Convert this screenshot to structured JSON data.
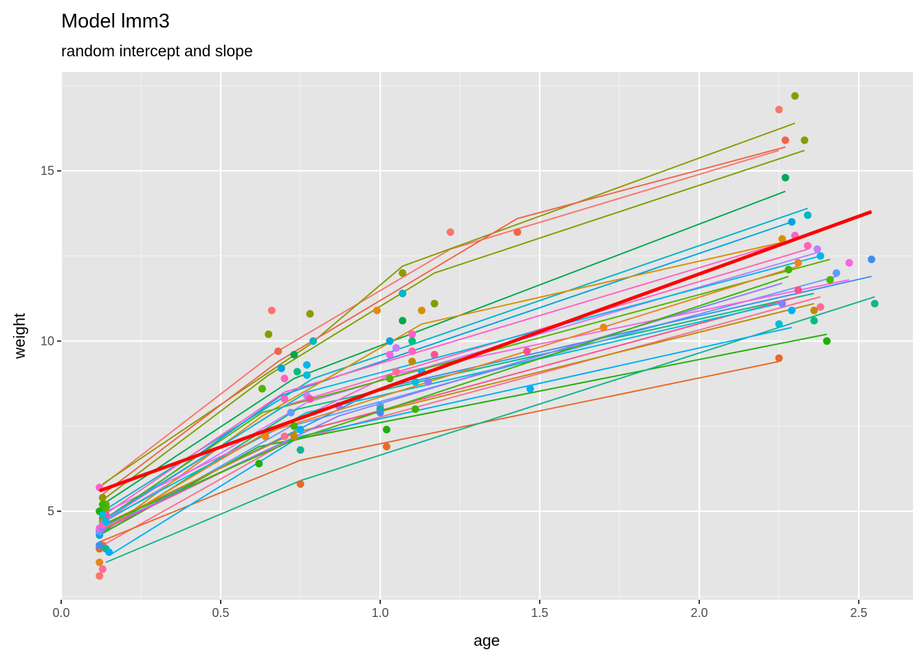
{
  "chart_data": {
    "type": "line",
    "title": "Model lmm3",
    "subtitle": "random intercept and slope",
    "xlabel": "age",
    "ylabel": "weight",
    "xlim": [
      -0.0,
      2.67
    ],
    "ylim": [
      2.4,
      17.9
    ],
    "xticks": [
      0.0,
      0.5,
      1.0,
      1.5,
      2.0,
      2.5
    ],
    "xtick_labels": [
      "0.0",
      "0.5",
      "1.0",
      "1.5",
      "2.0",
      "2.5"
    ],
    "yticks": [
      5,
      10,
      15
    ],
    "ytick_labels": [
      "5",
      "10",
      "15"
    ],
    "grid": true,
    "legend": "none",
    "population_fit": {
      "color": "#FF0000",
      "points": [
        [
          0.12,
          5.6
        ],
        [
          2.54,
          13.8
        ]
      ]
    },
    "subjects": [
      {
        "color": "#F8766D",
        "points": [
          [
            0.12,
            3.1
          ],
          [
            0.66,
            10.9
          ],
          [
            1.22,
            13.2
          ],
          [
            2.25,
            16.8
          ]
        ],
        "fit": [
          [
            0.12,
            5.7
          ],
          [
            0.66,
            9.6
          ],
          [
            1.22,
            12.7
          ],
          [
            2.25,
            15.6
          ]
        ]
      },
      {
        "color": "#8E9A00",
        "points": [
          [
            0.13,
            5.4
          ],
          [
            0.78,
            10.8
          ],
          [
            1.07,
            12.0
          ],
          [
            2.3,
            17.2
          ]
        ],
        "fit": [
          [
            0.13,
            5.8
          ],
          [
            0.78,
            9.9
          ],
          [
            1.07,
            12.2
          ],
          [
            2.3,
            16.4
          ]
        ]
      },
      {
        "color": "#EF6548",
        "points": [
          [
            0.13,
            4.0
          ],
          [
            0.68,
            9.7
          ],
          [
            1.43,
            13.2
          ],
          [
            2.27,
            15.9
          ]
        ],
        "fit": [
          [
            0.13,
            5.5
          ],
          [
            0.68,
            9.4
          ],
          [
            1.43,
            13.6
          ],
          [
            2.27,
            15.7
          ]
        ]
      },
      {
        "color": "#7F9F00",
        "points": [
          [
            0.14,
            5.2
          ],
          [
            0.65,
            10.2
          ],
          [
            1.17,
            11.1
          ],
          [
            2.33,
            15.9
          ]
        ],
        "fit": [
          [
            0.14,
            5.4
          ],
          [
            0.65,
            9.0
          ],
          [
            1.17,
            12.0
          ],
          [
            2.33,
            15.6
          ]
        ]
      },
      {
        "color": "#00A84F",
        "points": [
          [
            0.13,
            5.0
          ],
          [
            0.73,
            9.6
          ],
          [
            1.07,
            10.6
          ],
          [
            2.27,
            14.8
          ]
        ],
        "fit": [
          [
            0.13,
            5.2
          ],
          [
            0.73,
            8.9
          ],
          [
            2.27,
            14.4
          ]
        ]
      },
      {
        "color": "#00B5C8",
        "points": [
          [
            0.13,
            4.8
          ],
          [
            0.79,
            10.0
          ],
          [
            1.07,
            11.4
          ],
          [
            2.34,
            13.7
          ]
        ],
        "fit": [
          [
            0.13,
            5.0
          ],
          [
            0.79,
            8.9
          ],
          [
            2.34,
            13.9
          ]
        ]
      },
      {
        "color": "#00A5E0",
        "points": [
          [
            0.12,
            4.3
          ],
          [
            0.69,
            9.2
          ],
          [
            1.03,
            10.0
          ],
          [
            2.29,
            13.5
          ]
        ],
        "fit": [
          [
            0.12,
            4.6
          ],
          [
            0.69,
            8.4
          ],
          [
            2.29,
            13.5
          ]
        ]
      },
      {
        "color": "#FF61C3",
        "points": [
          [
            0.12,
            5.7
          ],
          [
            0.7,
            8.9
          ],
          [
            1.1,
            10.2
          ],
          [
            2.3,
            13.1
          ]
        ],
        "fit": [
          [
            0.12,
            4.8
          ],
          [
            0.7,
            8.5
          ],
          [
            2.3,
            13.0
          ]
        ]
      },
      {
        "color": "#C77CFF",
        "points": [
          [
            0.12,
            4.4
          ],
          [
            0.77,
            8.4
          ],
          [
            1.05,
            9.8
          ],
          [
            2.37,
            12.7
          ]
        ],
        "fit": [
          [
            0.12,
            4.6
          ],
          [
            0.77,
            8.2
          ],
          [
            2.37,
            12.6
          ]
        ]
      },
      {
        "color": "#D89000",
        "points": [
          [
            0.12,
            3.9
          ],
          [
            0.63,
            8.6
          ],
          [
            1.13,
            10.9
          ],
          [
            2.26,
            13.0
          ]
        ],
        "fit": [
          [
            0.12,
            4.3
          ],
          [
            0.63,
            7.8
          ],
          [
            1.13,
            10.5
          ],
          [
            2.26,
            12.9
          ]
        ]
      },
      {
        "color": "#00BF7D",
        "points": [
          [
            0.13,
            4.6
          ],
          [
            0.74,
            9.1
          ],
          [
            1.1,
            10.0
          ],
          [
            2.36,
            10.6
          ]
        ],
        "fit": [
          [
            0.13,
            4.4
          ],
          [
            0.74,
            8.0
          ],
          [
            2.36,
            11.4
          ]
        ]
      },
      {
        "color": "#619CFF",
        "points": [
          [
            0.12,
            4.4
          ],
          [
            0.72,
            7.9
          ],
          [
            1.0,
            8.1
          ],
          [
            2.43,
            12.0
          ]
        ],
        "fit": [
          [
            0.12,
            4.3
          ],
          [
            0.72,
            7.5
          ],
          [
            2.43,
            11.9
          ]
        ]
      },
      {
        "color": "#FF6C91",
        "points": [
          [
            0.13,
            3.3
          ],
          [
            0.7,
            7.2
          ],
          [
            1.05,
            9.1
          ],
          [
            2.38,
            11.0
          ]
        ],
        "fit": [
          [
            0.13,
            4.0
          ],
          [
            0.7,
            7.0
          ],
          [
            2.38,
            11.3
          ]
        ]
      },
      {
        "color": "#E76A2A",
        "points": [
          [
            0.12,
            3.9
          ],
          [
            0.75,
            5.8
          ],
          [
            1.02,
            6.9
          ],
          [
            2.25,
            9.5
          ]
        ],
        "fit": [
          [
            0.12,
            4.1
          ],
          [
            0.75,
            6.5
          ],
          [
            2.25,
            9.4
          ]
        ]
      },
      {
        "color": "#1FAF0A",
        "points": [
          [
            0.12,
            5.0
          ],
          [
            0.62,
            6.4
          ],
          [
            1.02,
            7.4
          ],
          [
            2.4,
            10.0
          ]
        ],
        "fit": [
          [
            0.12,
            4.3
          ],
          [
            0.62,
            6.9
          ],
          [
            2.4,
            10.2
          ]
        ]
      },
      {
        "color": "#14B48B",
        "points": [
          [
            0.14,
            3.9
          ],
          [
            0.75,
            6.8
          ],
          [
            1.0,
            8.0
          ],
          [
            2.55,
            11.1
          ]
        ],
        "fit": [
          [
            0.14,
            3.5
          ],
          [
            0.75,
            5.9
          ],
          [
            2.55,
            11.3
          ]
        ]
      },
      {
        "color": "#00B0F6",
        "points": [
          [
            0.15,
            3.8
          ],
          [
            0.75,
            7.4
          ],
          [
            1.47,
            8.6
          ],
          [
            2.29,
            10.9
          ]
        ],
        "fit": [
          [
            0.15,
            3.7
          ],
          [
            0.75,
            7.2
          ],
          [
            2.29,
            10.4
          ]
        ]
      },
      {
        "color": "#3F8FF0",
        "points": [
          [
            0.12,
            4.0
          ],
          [
            1.0,
            7.9
          ],
          [
            2.54,
            12.4
          ]
        ],
        "fit": [
          [
            0.12,
            4.5
          ],
          [
            1.0,
            8.6
          ],
          [
            2.54,
            11.9
          ]
        ]
      },
      {
        "color": "#F564E3",
        "points": [
          [
            0.12,
            4.5
          ],
          [
            1.03,
            9.6
          ],
          [
            2.47,
            12.3
          ]
        ],
        "fit": [
          [
            0.12,
            4.9
          ],
          [
            1.03,
            9.0
          ],
          [
            2.47,
            11.8
          ]
        ]
      },
      {
        "color": "#C08B00",
        "points": [
          [
            0.13,
            4.7
          ],
          [
            0.73,
            7.2
          ],
          [
            1.1,
            9.4
          ],
          [
            2.36,
            10.9
          ]
        ],
        "fit": [
          [
            0.13,
            4.6
          ],
          [
            0.73,
            7.3
          ],
          [
            2.36,
            11.1
          ]
        ]
      },
      {
        "color": "#53B400",
        "points": [
          [
            0.14,
            5.1
          ],
          [
            0.63,
            8.6
          ],
          [
            1.03,
            8.9
          ],
          [
            2.41,
            11.8
          ]
        ],
        "fit": [
          [
            0.14,
            4.8
          ],
          [
            0.63,
            7.9
          ],
          [
            2.41,
            12.4
          ]
        ]
      },
      {
        "color": "#FD4F8F",
        "points": [
          [
            0.14,
            4.9
          ],
          [
            0.78,
            8.3
          ],
          [
            1.17,
            9.6
          ],
          [
            1.46,
            9.7
          ],
          [
            2.31,
            11.5
          ]
        ],
        "fit": [
          [
            0.14,
            4.5
          ],
          [
            0.78,
            7.4
          ],
          [
            2.31,
            11.3
          ]
        ]
      },
      {
        "color": "#00BCD8",
        "points": [
          [
            0.13,
            4.9
          ],
          [
            0.77,
            9.0
          ],
          [
            1.11,
            8.8
          ],
          [
            2.25,
            10.5
          ]
        ],
        "fit": [
          [
            0.13,
            4.7
          ],
          [
            0.77,
            7.9
          ],
          [
            2.25,
            11.1
          ]
        ]
      },
      {
        "color": "#8B7CFF",
        "points": [
          [
            0.13,
            4.5
          ],
          [
            0.87,
            8.1
          ],
          [
            1.15,
            8.8
          ],
          [
            2.26,
            11.1
          ]
        ],
        "fit": [
          [
            0.13,
            4.5
          ],
          [
            0.87,
            7.8
          ],
          [
            2.26,
            11.7
          ]
        ]
      },
      {
        "color": "#E7861B",
        "points": [
          [
            0.12,
            3.5
          ],
          [
            0.64,
            7.2
          ],
          [
            0.99,
            10.9
          ],
          [
            1.7,
            10.4
          ],
          [
            2.31,
            12.3
          ]
        ],
        "fit": [
          [
            0.12,
            4.4
          ],
          [
            0.64,
            7.3
          ],
          [
            2.31,
            12.2
          ]
        ]
      },
      {
        "color": "#39B600",
        "points": [
          [
            0.13,
            5.2
          ],
          [
            0.73,
            7.5
          ],
          [
            1.11,
            8.0
          ],
          [
            2.28,
            12.1
          ]
        ],
        "fit": [
          [
            0.13,
            4.6
          ],
          [
            0.73,
            7.1
          ],
          [
            2.28,
            11.9
          ]
        ]
      },
      {
        "color": "#FF62BC",
        "points": [
          [
            0.13,
            4.6
          ],
          [
            0.7,
            8.3
          ],
          [
            1.1,
            9.7
          ],
          [
            2.34,
            12.8
          ]
        ],
        "fit": [
          [
            0.13,
            4.7
          ],
          [
            0.7,
            8.1
          ],
          [
            2.34,
            12.7
          ]
        ]
      },
      {
        "color": "#00B8E7",
        "points": [
          [
            0.14,
            4.7
          ],
          [
            0.77,
            9.3
          ],
          [
            1.13,
            9.1
          ],
          [
            2.38,
            12.5
          ]
        ],
        "fit": [
          [
            0.14,
            4.8
          ],
          [
            0.77,
            8.5
          ],
          [
            2.38,
            12.5
          ]
        ]
      }
    ]
  }
}
